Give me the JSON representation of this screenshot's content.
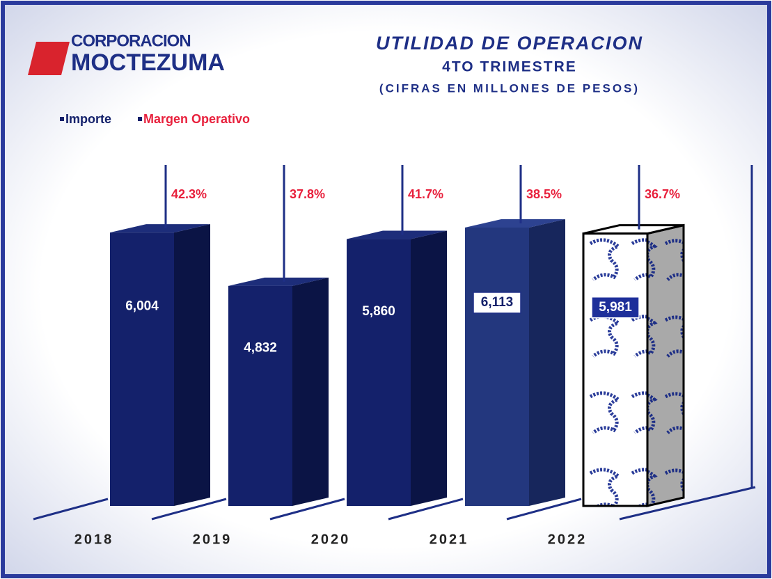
{
  "logo": {
    "line1": "CORPORACION",
    "line2": "MOCTEZUMA"
  },
  "chart_data": {
    "type": "bar3d",
    "title": "UTILIDAD  DE  OPERACION",
    "subtitle": "4TO TRIMESTRE",
    "note": "(CIFRAS EN MILLONES DE PESOS)",
    "categories": [
      "2018",
      "2019",
      "2020",
      "2021",
      "2022"
    ],
    "series": [
      {
        "name": "Importe",
        "color": "#14216b",
        "values": [
          6004,
          4832,
          5860,
          6113,
          5981
        ],
        "value_labels": [
          "6,004",
          "4,832",
          "5,860",
          "6,113",
          "5,981"
        ]
      },
      {
        "name": "Margen Operativo",
        "color": "#e8203c",
        "values": [
          42.3,
          37.8,
          41.7,
          38.5,
          36.7
        ],
        "value_labels": [
          "42.3%",
          "37.8%",
          "41.7%",
          "38.5%",
          "36.7%"
        ]
      }
    ]
  }
}
